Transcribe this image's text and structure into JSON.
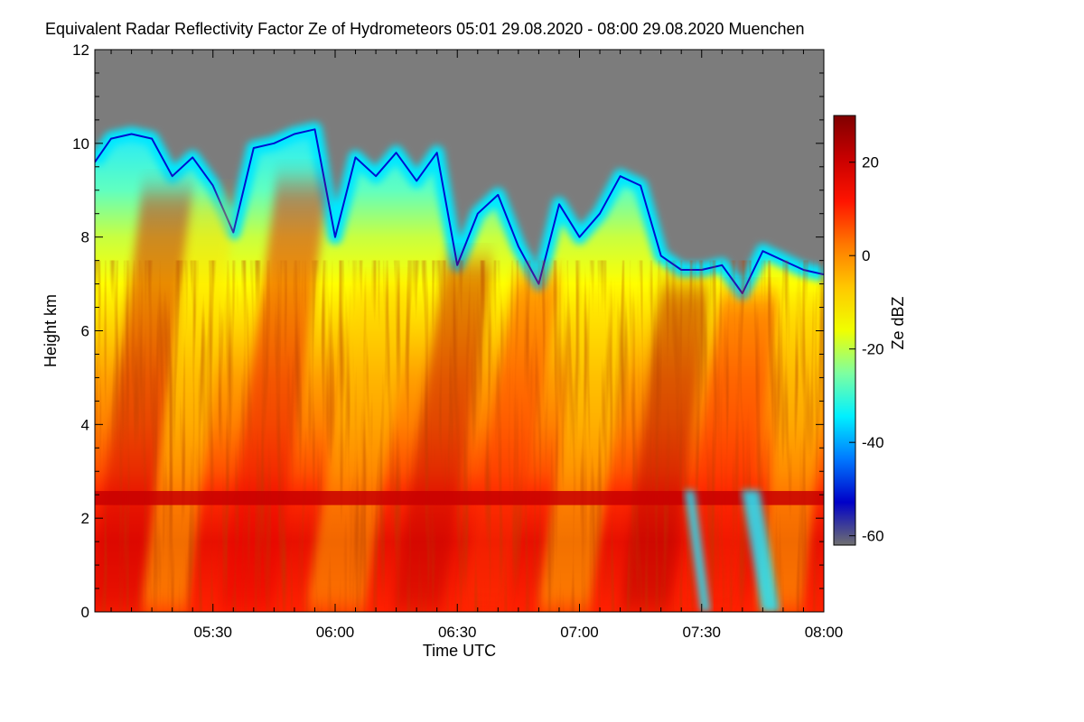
{
  "chart_data": {
    "type": "heatmap",
    "title": "Equivalent Radar Reflectivity Factor Ze of Hydrometeors   05:01 29.08.2020 - 08:00 29.08.2020 Muenchen",
    "xlabel": "Time UTC",
    "ylabel": "Height km",
    "x_range_minutes_utc": [
      301,
      480
    ],
    "x_ticks": [
      {
        "label": "05:30",
        "minutes": 330
      },
      {
        "label": "06:00",
        "minutes": 360
      },
      {
        "label": "06:30",
        "minutes": 390
      },
      {
        "label": "07:00",
        "minutes": 420
      },
      {
        "label": "07:30",
        "minutes": 450
      },
      {
        "label": "08:00",
        "minutes": 480
      }
    ],
    "ylim": [
      0,
      12
    ],
    "y_ticks": [
      0,
      2,
      4,
      6,
      8,
      10,
      12
    ],
    "colorbar": {
      "label": "Ze dBZ",
      "range": [
        -62,
        30
      ],
      "ticks": [
        20,
        0,
        -20,
        -40,
        -60
      ],
      "colors": [
        "#707070",
        "#0000c8",
        "#0078ff",
        "#00f0ff",
        "#7effa0",
        "#f0ff00",
        "#ffc800",
        "#ff7800",
        "#ff1400",
        "#c80000",
        "#800000"
      ]
    },
    "cloud_top_km": [
      {
        "t": 301,
        "h": 9.6
      },
      {
        "t": 305,
        "h": 10.1
      },
      {
        "t": 310,
        "h": 10.2
      },
      {
        "t": 315,
        "h": 10.1
      },
      {
        "t": 320,
        "h": 9.3
      },
      {
        "t": 325,
        "h": 9.7
      },
      {
        "t": 330,
        "h": 9.1
      },
      {
        "t": 335,
        "h": 8.1
      },
      {
        "t": 340,
        "h": 9.9
      },
      {
        "t": 345,
        "h": 10.0
      },
      {
        "t": 350,
        "h": 10.2
      },
      {
        "t": 355,
        "h": 10.3
      },
      {
        "t": 360,
        "h": 8.0
      },
      {
        "t": 365,
        "h": 9.7
      },
      {
        "t": 370,
        "h": 9.3
      },
      {
        "t": 375,
        "h": 9.8
      },
      {
        "t": 380,
        "h": 9.2
      },
      {
        "t": 385,
        "h": 9.8
      },
      {
        "t": 390,
        "h": 7.4
      },
      {
        "t": 395,
        "h": 8.5
      },
      {
        "t": 400,
        "h": 8.9
      },
      {
        "t": 405,
        "h": 7.8
      },
      {
        "t": 410,
        "h": 7.0
      },
      {
        "t": 415,
        "h": 8.7
      },
      {
        "t": 420,
        "h": 8.0
      },
      {
        "t": 425,
        "h": 8.5
      },
      {
        "t": 430,
        "h": 9.3
      },
      {
        "t": 435,
        "h": 9.1
      },
      {
        "t": 440,
        "h": 7.6
      },
      {
        "t": 445,
        "h": 7.3
      },
      {
        "t": 450,
        "h": 7.3
      },
      {
        "t": 455,
        "h": 7.4
      },
      {
        "t": 460,
        "h": 6.8
      },
      {
        "t": 465,
        "h": 7.7
      },
      {
        "t": 470,
        "h": 7.5
      },
      {
        "t": 475,
        "h": 7.3
      },
      {
        "t": 480,
        "h": 7.2
      }
    ],
    "melting_layer_km": 2.4,
    "fall_streaks": [
      {
        "t_top": 319,
        "t_bottom": 306,
        "top_km": 9.0,
        "width_min": 1.6
      },
      {
        "t_top": 330,
        "t_bottom": 318,
        "top_km": 8.8,
        "width_min": 1.4
      },
      {
        "t_top": 352,
        "t_bottom": 338,
        "top_km": 9.2,
        "width_min": 1.6
      },
      {
        "t_top": 372,
        "t_bottom": 360,
        "top_km": 7.0,
        "width_min": 1.8
      },
      {
        "t_top": 393,
        "t_bottom": 380,
        "top_km": 7.5,
        "width_min": 1.5
      },
      {
        "t_top": 410,
        "t_bottom": 396,
        "top_km": 7.2,
        "width_min": 1.4
      },
      {
        "t_top": 427,
        "t_bottom": 416,
        "top_km": 6.8,
        "width_min": 1.6
      },
      {
        "t_top": 446,
        "t_bottom": 436,
        "top_km": 7.0,
        "width_min": 1.5
      },
      {
        "t_top": 462,
        "t_bottom": 451,
        "top_km": 6.8,
        "width_min": 1.8
      },
      {
        "t_top": 477,
        "t_bottom": 469,
        "top_km": 6.5,
        "width_min": 1.4
      }
    ],
    "dry_gaps": [
      {
        "t_top": 447,
        "t_bottom": 451,
        "top_km": 2.6,
        "width_min": 1.2
      },
      {
        "t_top": 462,
        "t_bottom": 467,
        "top_km": 2.6,
        "width_min": 2.2
      }
    ]
  }
}
